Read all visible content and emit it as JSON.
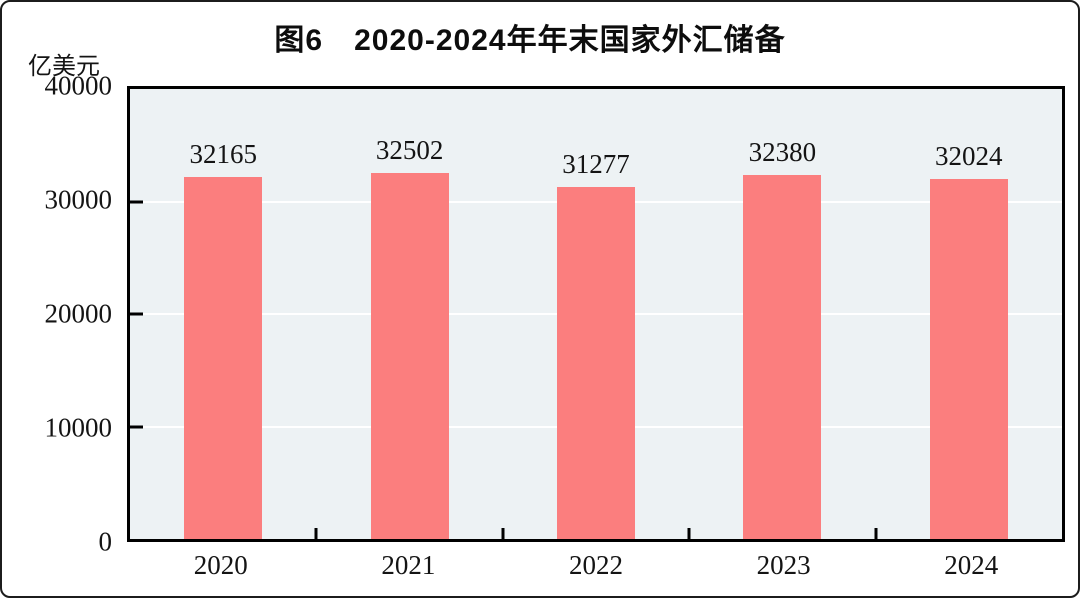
{
  "figure": {
    "background": "#ffffff",
    "frame_color": "#1c1c1c"
  },
  "chart_data": {
    "type": "bar",
    "title": "图6　2020-2024年年末国家外汇储备",
    "unit_label": "亿美元",
    "categories": [
      "2020",
      "2021",
      "2022",
      "2023",
      "2024"
    ],
    "values": [
      32165,
      32502,
      31277,
      32380,
      32024
    ],
    "data_labels": [
      "32165",
      "32502",
      "31277",
      "32380",
      "32024"
    ],
    "ylim": [
      0,
      40000
    ],
    "ytick_step": 10000,
    "ytick_labels": [
      "0",
      "10000",
      "20000",
      "30000",
      "40000"
    ],
    "xlabel": "",
    "ylabel": "亿美元",
    "grid": "on",
    "legend": "none",
    "bar_color": "#FB7E7E",
    "plot_bg": "#EDF2F4",
    "grid_color": "#FFFFFF",
    "axis_color": "#000000"
  }
}
